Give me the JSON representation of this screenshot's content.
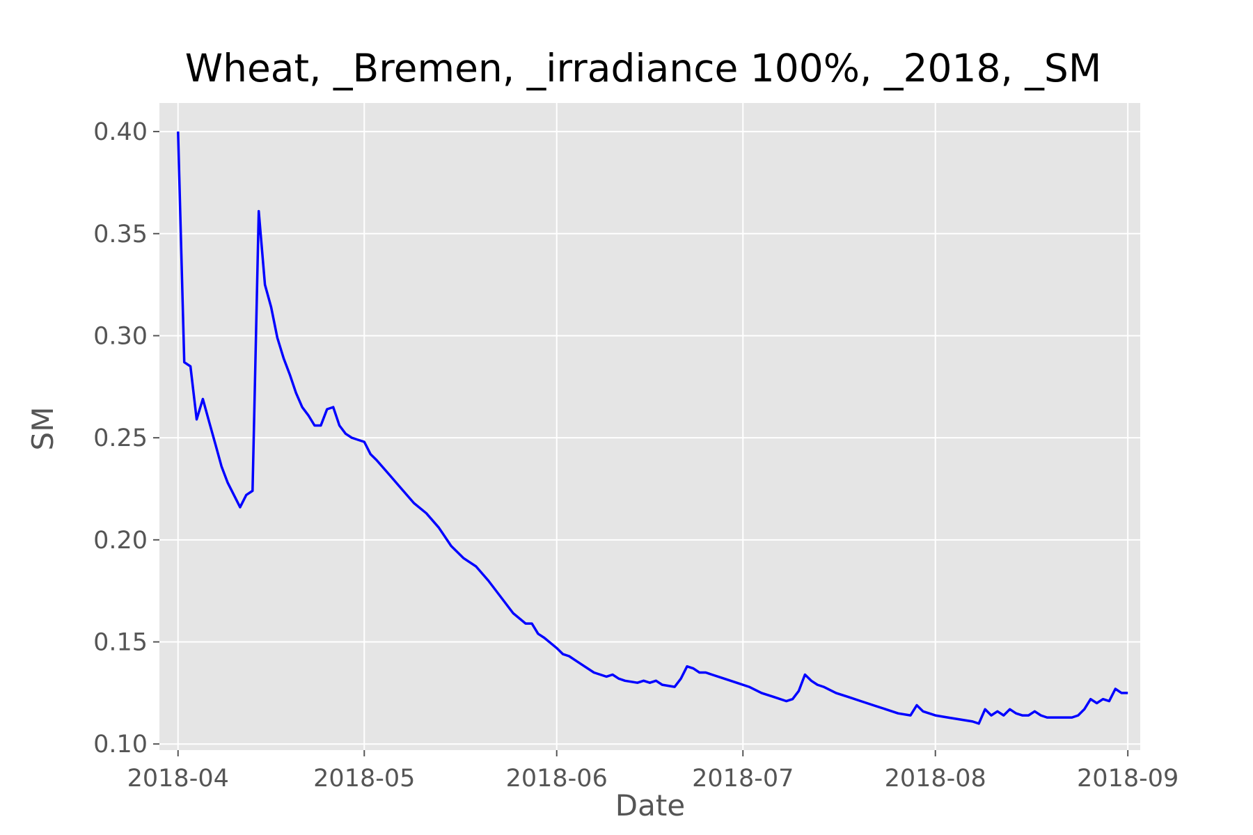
{
  "chart_data": {
    "type": "line",
    "title": "Wheat, _Bremen, _irradiance 100%, _2018, _SM",
    "xlabel": "Date",
    "ylabel": "SM",
    "x_range": [
      "2018-03-29",
      "2018-09-03"
    ],
    "ylim": [
      0.097,
      0.414
    ],
    "x_ticks": [
      "2018-04-01",
      "2018-05-01",
      "2018-06-01",
      "2018-07-01",
      "2018-08-01",
      "2018-09-01"
    ],
    "x_tick_labels": [
      "2018-04",
      "2018-05",
      "2018-06",
      "2018-07",
      "2018-08",
      "2018-09"
    ],
    "y_ticks": [
      0.1,
      0.15,
      0.2,
      0.25,
      0.3,
      0.35,
      0.4
    ],
    "y_tick_labels": [
      "0.10",
      "0.15",
      "0.20",
      "0.25",
      "0.30",
      "0.35",
      "0.40"
    ],
    "grid": true,
    "background": "#e5e5e5",
    "grid_color": "#ffffff",
    "tick_color": "#555555",
    "series": [
      {
        "color": "#0000ff",
        "x": [
          "2018-04-01",
          "2018-04-02",
          "2018-04-03",
          "2018-04-04",
          "2018-04-05",
          "2018-04-06",
          "2018-04-07",
          "2018-04-08",
          "2018-04-09",
          "2018-04-10",
          "2018-04-11",
          "2018-04-12",
          "2018-04-13",
          "2018-04-14",
          "2018-04-15",
          "2018-04-16",
          "2018-04-17",
          "2018-04-18",
          "2018-04-19",
          "2018-04-20",
          "2018-04-21",
          "2018-04-22",
          "2018-04-23",
          "2018-04-24",
          "2018-04-25",
          "2018-04-26",
          "2018-04-27",
          "2018-04-28",
          "2018-04-29",
          "2018-04-30",
          "2018-05-01",
          "2018-05-02",
          "2018-05-03",
          "2018-05-05",
          "2018-05-07",
          "2018-05-09",
          "2018-05-11",
          "2018-05-13",
          "2018-05-15",
          "2018-05-17",
          "2018-05-19",
          "2018-05-21",
          "2018-05-23",
          "2018-05-25",
          "2018-05-27",
          "2018-05-28",
          "2018-05-29",
          "2018-05-30",
          "2018-06-01",
          "2018-06-02",
          "2018-06-03",
          "2018-06-04",
          "2018-06-05",
          "2018-06-07",
          "2018-06-09",
          "2018-06-10",
          "2018-06-11",
          "2018-06-12",
          "2018-06-14",
          "2018-06-15",
          "2018-06-16",
          "2018-06-17",
          "2018-06-18",
          "2018-06-20",
          "2018-06-21",
          "2018-06-22",
          "2018-06-23",
          "2018-06-24",
          "2018-06-25",
          "2018-06-26",
          "2018-06-28",
          "2018-06-30",
          "2018-07-02",
          "2018-07-04",
          "2018-07-06",
          "2018-07-08",
          "2018-07-09",
          "2018-07-10",
          "2018-07-11",
          "2018-07-12",
          "2018-07-13",
          "2018-07-14",
          "2018-07-16",
          "2018-07-18",
          "2018-07-20",
          "2018-07-22",
          "2018-07-24",
          "2018-07-26",
          "2018-07-28",
          "2018-07-29",
          "2018-07-30",
          "2018-07-31",
          "2018-08-01",
          "2018-08-03",
          "2018-08-05",
          "2018-08-07",
          "2018-08-08",
          "2018-08-09",
          "2018-08-10",
          "2018-08-11",
          "2018-08-12",
          "2018-08-13",
          "2018-08-14",
          "2018-08-15",
          "2018-08-16",
          "2018-08-17",
          "2018-08-18",
          "2018-08-19",
          "2018-08-20",
          "2018-08-21",
          "2018-08-22",
          "2018-08-23",
          "2018-08-24",
          "2018-08-25",
          "2018-08-26",
          "2018-08-27",
          "2018-08-28",
          "2018-08-29",
          "2018-08-30",
          "2018-08-31",
          "2018-09-01"
        ],
        "y": [
          0.4,
          0.287,
          0.285,
          0.259,
          0.269,
          0.258,
          0.247,
          0.236,
          0.228,
          0.222,
          0.216,
          0.222,
          0.224,
          0.361,
          0.325,
          0.314,
          0.299,
          0.289,
          0.281,
          0.272,
          0.265,
          0.261,
          0.256,
          0.256,
          0.264,
          0.265,
          0.256,
          0.252,
          0.25,
          0.249,
          0.248,
          0.242,
          0.239,
          0.232,
          0.225,
          0.218,
          0.213,
          0.206,
          0.197,
          0.191,
          0.187,
          0.18,
          0.172,
          0.164,
          0.159,
          0.159,
          0.154,
          0.152,
          0.147,
          0.144,
          0.143,
          0.141,
          0.139,
          0.135,
          0.133,
          0.134,
          0.132,
          0.131,
          0.13,
          0.131,
          0.13,
          0.131,
          0.129,
          0.128,
          0.132,
          0.138,
          0.137,
          0.135,
          0.135,
          0.134,
          0.132,
          0.13,
          0.128,
          0.125,
          0.123,
          0.121,
          0.122,
          0.126,
          0.134,
          0.131,
          0.129,
          0.128,
          0.125,
          0.123,
          0.121,
          0.119,
          0.117,
          0.115,
          0.114,
          0.119,
          0.116,
          0.115,
          0.114,
          0.113,
          0.112,
          0.111,
          0.11,
          0.117,
          0.114,
          0.116,
          0.114,
          0.117,
          0.115,
          0.114,
          0.114,
          0.116,
          0.114,
          0.113,
          0.113,
          0.113,
          0.113,
          0.113,
          0.114,
          0.117,
          0.122,
          0.12,
          0.122,
          0.121,
          0.127,
          0.125,
          0.125
        ]
      }
    ]
  }
}
